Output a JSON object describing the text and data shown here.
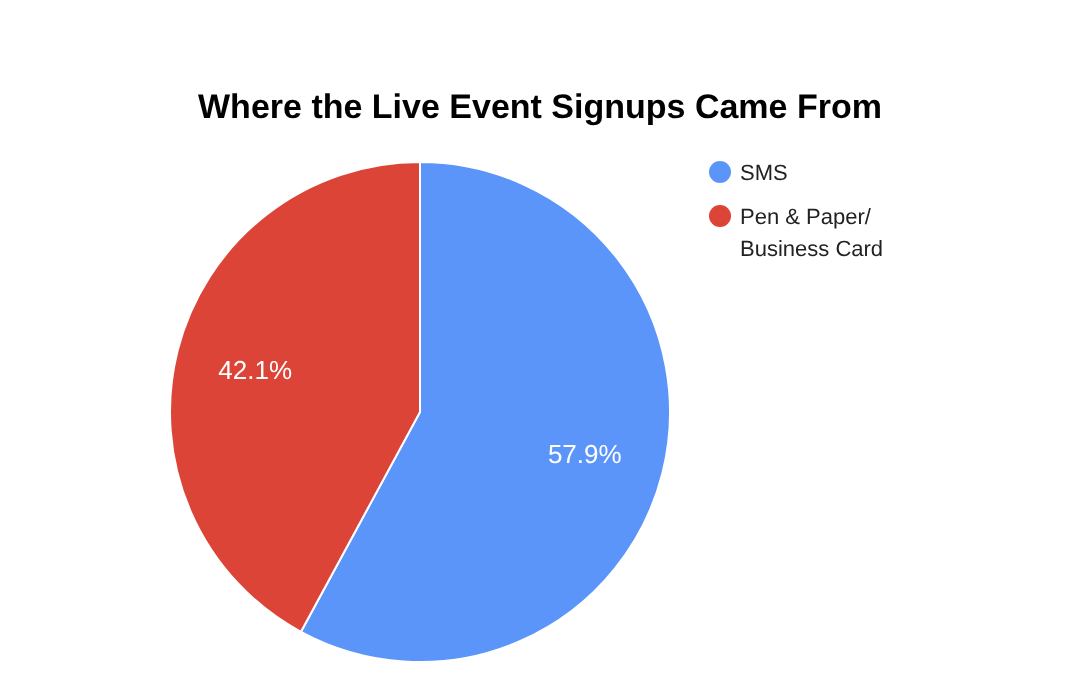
{
  "chart_data": {
    "type": "pie",
    "title": "Where the Live Event Signups Came From",
    "categories": [
      "SMS",
      "Pen & Paper/ Business Card"
    ],
    "values": [
      57.9,
      42.1
    ],
    "colors": [
      "#5b95f9",
      "#db4437"
    ],
    "value_labels": [
      "57.9%",
      "42.1%"
    ],
    "legend": "right"
  }
}
